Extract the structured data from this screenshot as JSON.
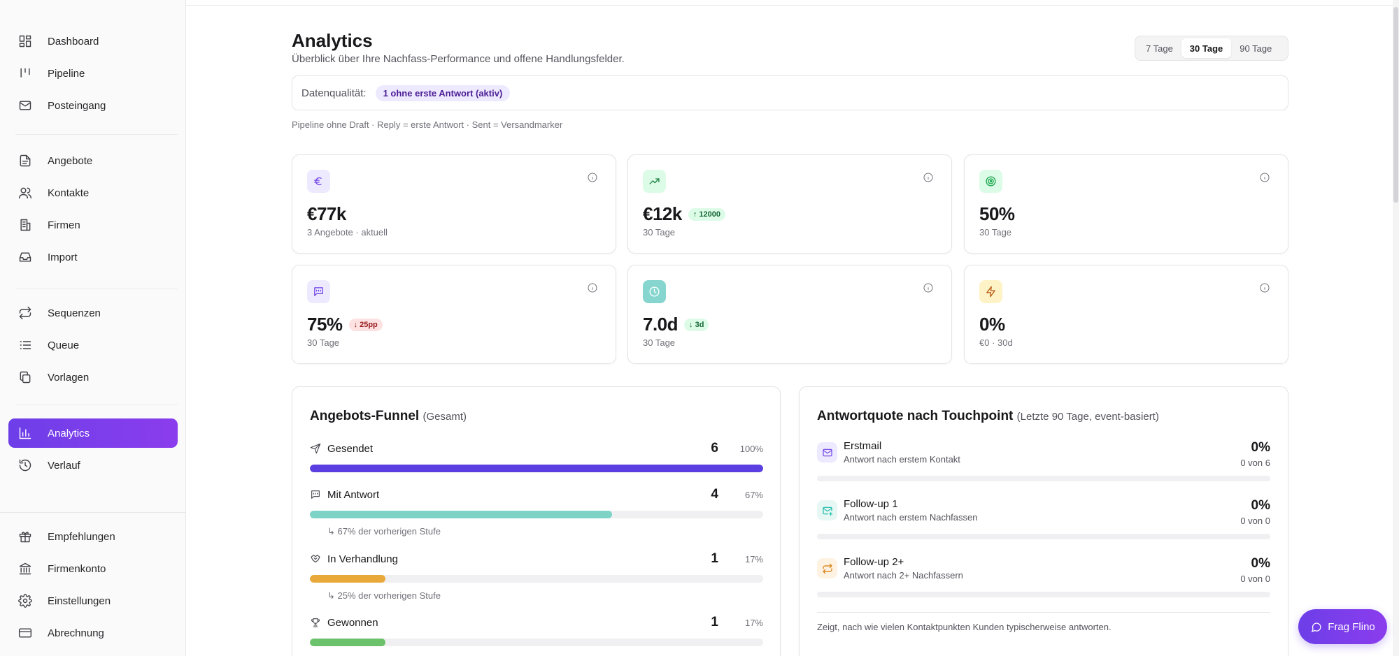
{
  "sidebar": {
    "items": [
      {
        "label": "Dashboard",
        "icon": "dashboard-icon"
      },
      {
        "label": "Pipeline",
        "icon": "pipeline-icon"
      },
      {
        "label": "Posteingang",
        "icon": "inbox-mail-icon"
      },
      {
        "label": "Angebote",
        "icon": "document-icon"
      },
      {
        "label": "Kontakte",
        "icon": "users-icon"
      },
      {
        "label": "Firmen",
        "icon": "building-icon"
      },
      {
        "label": "Import",
        "icon": "tray-icon"
      },
      {
        "label": "Sequenzen",
        "icon": "repeat-icon"
      },
      {
        "label": "Queue",
        "icon": "list-icon"
      },
      {
        "label": "Vorlagen",
        "icon": "copy-icon"
      },
      {
        "label": "Analytics",
        "icon": "bar-chart-icon",
        "active": true
      },
      {
        "label": "Verlauf",
        "icon": "history-icon"
      },
      {
        "label": "Empfehlungen",
        "icon": "gift-icon"
      },
      {
        "label": "Firmenkonto",
        "icon": "bank-icon"
      },
      {
        "label": "Einstellungen",
        "icon": "gear-icon"
      },
      {
        "label": "Abrechnung",
        "icon": "credit-card-icon"
      }
    ]
  },
  "header": {
    "title": "Analytics",
    "subtitle": "Überblick über Ihre Nachfass-Performance und offene Handlungsfelder."
  },
  "range": {
    "options": [
      "7 Tage",
      "30 Tage",
      "90 Tage"
    ],
    "selected": "30 Tage"
  },
  "data_quality": {
    "label": "Datenqualität:",
    "badge": "1 ohne erste Antwort (aktiv)"
  },
  "note": "Pipeline ohne Draft · Reply = erste Antwort · Sent = Versandmarker",
  "kpis": [
    {
      "icon": "euro-icon",
      "value": "€77k",
      "caption": "3 Angebote · aktuell",
      "delta": "",
      "color": "#6d3ee8",
      "bg": "#ede9fe"
    },
    {
      "icon": "trending-up-icon",
      "value": "€12k",
      "caption": "30 Tage",
      "delta": "↑ 12000",
      "delta_tone": "green",
      "color": "#15803d",
      "bg": "#dcfce7"
    },
    {
      "icon": "target-icon",
      "value": "50%",
      "caption": "30 Tage",
      "delta": "",
      "color": "#16a34a",
      "bg": "#dcfce7"
    },
    {
      "icon": "message-icon",
      "value": "75%",
      "caption": "30 Tage",
      "delta": "↓ 25pp",
      "delta_tone": "red",
      "color": "#6d3ee8",
      "bg": "#ede9fe"
    },
    {
      "icon": "clock-icon",
      "value": "7.0d",
      "caption": "30 Tage",
      "delta": "↓ 3d",
      "delta_tone": "green",
      "color": "#ffffff",
      "bg": "#86d6cf"
    },
    {
      "icon": "bolt-icon",
      "value": "0%",
      "caption": "€0 · 30d",
      "delta": "",
      "color": "#b45309",
      "bg": "#fef3c7"
    }
  ],
  "funnel": {
    "title": "Angebots-Funnel",
    "title_paren": "(Gesamt)",
    "stages": [
      {
        "label": "Gesendet",
        "icon": "send-icon",
        "count": "6",
        "pct": "100%",
        "fraction": 1.0,
        "color": "#5b3fe0",
        "sub": ""
      },
      {
        "label": "Mit Antwort",
        "icon": "message-icon",
        "count": "4",
        "pct": "67%",
        "fraction": 0.667,
        "color": "#7dd3c5",
        "sub": "↳ 67% der vorherigen Stufe"
      },
      {
        "label": "In Verhandlung",
        "icon": "handshake-icon",
        "count": "1",
        "pct": "17%",
        "fraction": 0.167,
        "color": "#e8a93a",
        "sub": "↳ 25% der vorherigen Stufe"
      },
      {
        "label": "Gewonnen",
        "icon": "trophy-icon",
        "count": "1",
        "pct": "17%",
        "fraction": 0.167,
        "color": "#6cc26a",
        "sub": ""
      }
    ]
  },
  "touchpoint": {
    "title": "Antwortquote nach Touchpoint",
    "title_paren": "(Letzte 90 Tage, event-basiert)",
    "rows": [
      {
        "name": "Erstmail",
        "desc": "Antwort nach erstem Kontakt",
        "pct": "0%",
        "of": "0 von 6",
        "icon": "mail-icon",
        "color": "#6d3ee8",
        "bg": "#ede9fe"
      },
      {
        "name": "Follow-up 1",
        "desc": "Antwort nach erstem Nachfassen",
        "pct": "0%",
        "of": "0 von 0",
        "icon": "mail-plus-icon",
        "color": "#14b8a6",
        "bg": "#e6f7f4"
      },
      {
        "name": "Follow-up 2+",
        "desc": "Antwort nach 2+ Nachfassern",
        "pct": "0%",
        "of": "0 von 0",
        "icon": "repeat-icon",
        "color": "#d97706",
        "bg": "#fef3e2"
      }
    ],
    "footer": "Zeigt, nach wie vielen Kontaktpunkten Kunden typischerweise antworten."
  },
  "fab": {
    "label": "Frag Flino",
    "icon": "chat-icon"
  }
}
